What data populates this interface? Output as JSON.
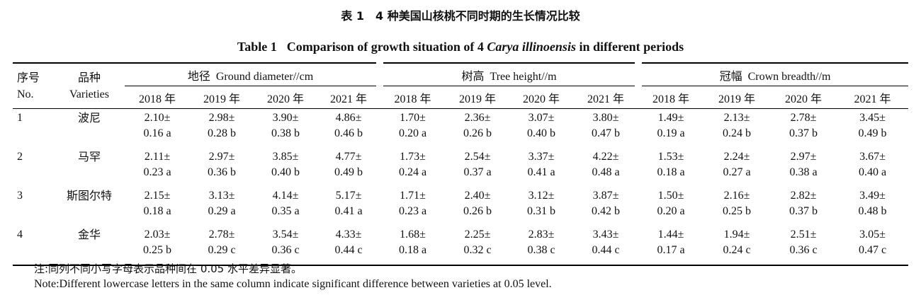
{
  "caption": {
    "zh": "表 1　4 种美国山核桃不同时期的生长情况比较",
    "en_label": "Table 1",
    "en_prefix": "Comparison of growth situation of 4 ",
    "en_italic": "Carya illinoensis",
    "en_suffix": " in different periods"
  },
  "columns": {
    "no_zh": "序号",
    "no_en": "No.",
    "variety_zh": "品种",
    "variety_en": "Varieties",
    "groups": [
      {
        "zh": "地径",
        "en": "Ground diameter//cm"
      },
      {
        "zh": "树高",
        "en": "Tree height//m"
      },
      {
        "zh": "冠幅",
        "en": "Crown breadth//m"
      }
    ],
    "years": [
      "2018 年",
      "2019 年",
      "2020 年",
      "2021 年"
    ]
  },
  "rows": [
    {
      "no": "1",
      "variety": "波尼",
      "cells": [
        [
          "2.10±",
          "0.16 a"
        ],
        [
          "2.98±",
          "0.28 b"
        ],
        [
          "3.90±",
          "0.38 b"
        ],
        [
          "4.86±",
          "0.46 b"
        ],
        [
          "1.70±",
          "0.20 a"
        ],
        [
          "2.36±",
          "0.26 b"
        ],
        [
          "3.07±",
          "0.40 b"
        ],
        [
          "3.80±",
          "0.47 b"
        ],
        [
          "1.49±",
          "0.19 a"
        ],
        [
          "2.13±",
          "0.24 b"
        ],
        [
          "2.78±",
          "0.37 b"
        ],
        [
          "3.45±",
          "0.49 b"
        ]
      ]
    },
    {
      "no": "2",
      "variety": "马罕",
      "cells": [
        [
          "2.11±",
          "0.23 a"
        ],
        [
          "2.97±",
          "0.36 b"
        ],
        [
          "3.85±",
          "0.40 b"
        ],
        [
          "4.77±",
          "0.49 b"
        ],
        [
          "1.73±",
          "0.24 a"
        ],
        [
          "2.54±",
          "0.37 a"
        ],
        [
          "3.37±",
          "0.41 a"
        ],
        [
          "4.22±",
          "0.48 a"
        ],
        [
          "1.53±",
          "0.18 a"
        ],
        [
          "2.24±",
          "0.27 a"
        ],
        [
          "2.97±",
          "0.38 a"
        ],
        [
          "3.67±",
          "0.40 a"
        ]
      ]
    },
    {
      "no": "3",
      "variety": "斯图尔特",
      "cells": [
        [
          "2.15±",
          "0.18 a"
        ],
        [
          "3.13±",
          "0.29 a"
        ],
        [
          "4.14±",
          "0.35 a"
        ],
        [
          "5.17±",
          "0.41 a"
        ],
        [
          "1.71±",
          "0.23 a"
        ],
        [
          "2.40±",
          "0.26 b"
        ],
        [
          "3.12±",
          "0.31 b"
        ],
        [
          "3.87±",
          "0.42 b"
        ],
        [
          "1.50±",
          "0.20 a"
        ],
        [
          "2.16±",
          "0.25 b"
        ],
        [
          "2.82±",
          "0.37 b"
        ],
        [
          "3.49±",
          "0.48 b"
        ]
      ]
    },
    {
      "no": "4",
      "variety": "金华",
      "cells": [
        [
          "2.03±",
          "0.25 b"
        ],
        [
          "2.78±",
          "0.29 c"
        ],
        [
          "3.54±",
          "0.36 c"
        ],
        [
          "4.33±",
          "0.44 c"
        ],
        [
          "1.68±",
          "0.18 a"
        ],
        [
          "2.25±",
          "0.32 c"
        ],
        [
          "2.83±",
          "0.38 c"
        ],
        [
          "3.43±",
          "0.44 c"
        ],
        [
          "1.44±",
          "0.17 a"
        ],
        [
          "1.94±",
          "0.24 c"
        ],
        [
          "2.51±",
          "0.36 c"
        ],
        [
          "3.05±",
          "0.47 c"
        ]
      ]
    }
  ],
  "notes": {
    "zh": "注:同列不同小写字母表示品种间在 0.05 水平差异显著。",
    "en": "Note:Different lowercase letters in the same column indicate significant difference between varieties at 0.05 level."
  }
}
